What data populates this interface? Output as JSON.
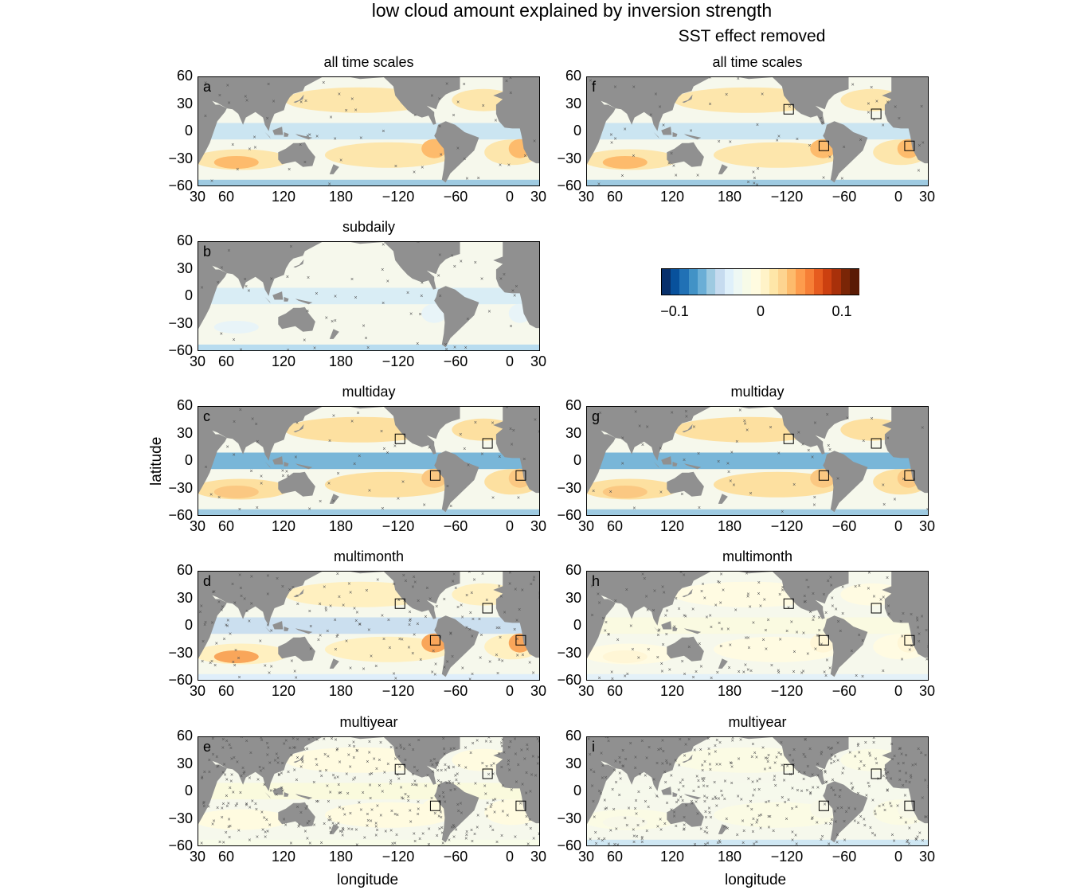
{
  "title": "low cloud amount explained by inversion strength",
  "subtitle": "SST effect removed",
  "axes": {
    "xlabel": "longitude",
    "ylabel": "latitude",
    "yticks": [
      "60",
      "30",
      "0",
      "−30",
      "−60"
    ],
    "xticks": [
      "30",
      "60",
      "120",
      "180",
      "−120",
      "−60",
      "0",
      "30"
    ]
  },
  "panels": [
    {
      "id": "a",
      "title": "all time scales",
      "style": "all"
    },
    {
      "id": "b",
      "title": "subdaily",
      "style": "subdaily"
    },
    {
      "id": "c",
      "title": "multiday",
      "style": "multiday"
    },
    {
      "id": "d",
      "title": "multimonth",
      "style": "multimonth"
    },
    {
      "id": "e",
      "title": "multiyear",
      "style": "multiyear"
    },
    {
      "id": "f",
      "title": "all time scales",
      "style": "all"
    },
    {
      "id": "g",
      "title": "multiday",
      "style": "multiday"
    },
    {
      "id": "h",
      "title": "multimonth",
      "style": "multimonth_sst"
    },
    {
      "id": "i",
      "title": "multiyear",
      "style": "multiyear_sst"
    }
  ],
  "colorbar": {
    "ticks": [
      "−0.1",
      "0",
      "0.1"
    ],
    "colors": [
      "#08306b",
      "#08519c",
      "#2171b5",
      "#4292c6",
      "#6baed6",
      "#9ecae1",
      "#c6dbef",
      "#dff0fa",
      "#eef8f4",
      "#f7fbe8",
      "#fffbe0",
      "#fff3c8",
      "#fee6a8",
      "#fdd490",
      "#fdbb6c",
      "#fd9c4d",
      "#f67f36",
      "#e65c1f",
      "#cc4010",
      "#a8300a",
      "#7a2506",
      "#5a1a04"
    ],
    "accent_land": "#909090"
  }
}
